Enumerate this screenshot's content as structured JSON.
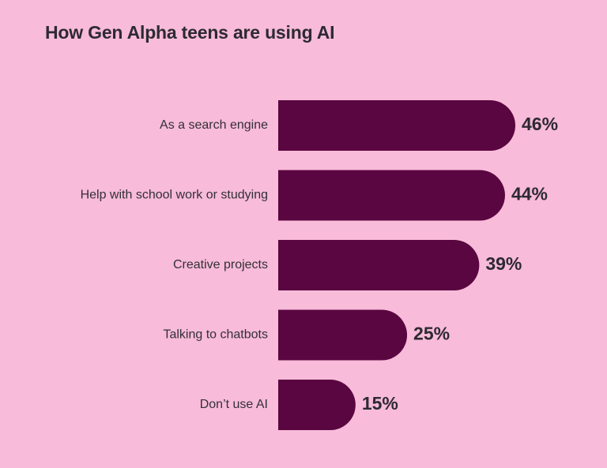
{
  "chart_data": {
    "type": "bar",
    "orientation": "horizontal",
    "title": "How Gen Alpha teens are using AI",
    "categories": [
      "As a search engine",
      "Help with school work or studying",
      "Creative projects",
      "Talking to chatbots",
      "Don’t use AI"
    ],
    "values": [
      46,
      44,
      39,
      25,
      15
    ],
    "value_labels": [
      "46%",
      "44%",
      "39%",
      "25%",
      "15%"
    ],
    "unit": "%",
    "grid": false,
    "legend": "none"
  },
  "colors": {
    "background": "#f8bbd9",
    "bar": "#5a0641",
    "text": "#2d2a32"
  }
}
